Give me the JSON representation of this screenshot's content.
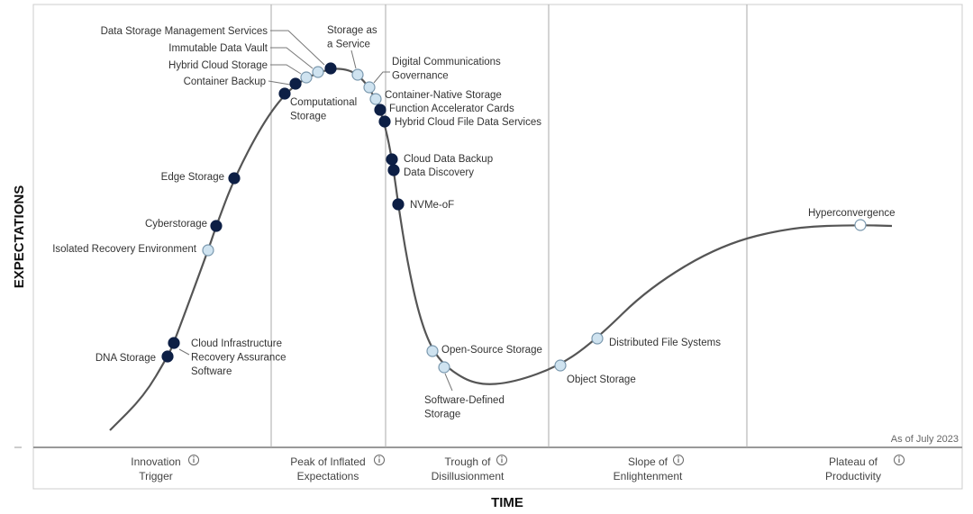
{
  "y_axis_label": "EXPECTATIONS",
  "x_axis_label": "TIME",
  "as_of": "As of July 2023",
  "colors": {
    "dark_point": "#0d1f45",
    "light_point": "#cfe3f0",
    "curve": "#555555",
    "divider": "#aaaaaa"
  },
  "phases": [
    {
      "lines": [
        "Innovation",
        "Trigger"
      ],
      "icon": "info-icon"
    },
    {
      "lines": [
        "Peak of Inflated",
        "Expectations"
      ],
      "icon": "info-icon"
    },
    {
      "lines": [
        "Trough of",
        "Disillusionment"
      ],
      "icon": "info-icon"
    },
    {
      "lines": [
        "Slope of",
        "Enlightenment"
      ],
      "icon": "info-icon"
    },
    {
      "lines": [
        "Plateau of",
        "Productivity"
      ],
      "icon": "info-icon"
    }
  ],
  "technologies": [
    {
      "name": "DNA Storage",
      "lines": [
        "DNA Storage"
      ],
      "style": "dark",
      "phase": "Innovation Trigger"
    },
    {
      "name": "Cloud Infrastructure Recovery Assurance Software",
      "lines": [
        "Cloud Infrastructure",
        "Recovery Assurance",
        "Software"
      ],
      "style": "dark",
      "phase": "Innovation Trigger"
    },
    {
      "name": "Isolated Recovery Environment",
      "lines": [
        "Isolated Recovery Environment"
      ],
      "style": "light",
      "phase": "Innovation Trigger"
    },
    {
      "name": "Cyberstorage",
      "lines": [
        "Cyberstorage"
      ],
      "style": "dark",
      "phase": "Innovation Trigger"
    },
    {
      "name": "Edge Storage",
      "lines": [
        "Edge Storage"
      ],
      "style": "dark",
      "phase": "Innovation Trigger"
    },
    {
      "name": "Computational Storage",
      "lines": [
        "Computational",
        "Storage"
      ],
      "style": "dark",
      "phase": "Peak of Inflated Expectations"
    },
    {
      "name": "Container Backup",
      "lines": [
        "Container Backup"
      ],
      "style": "dark",
      "phase": "Peak of Inflated Expectations"
    },
    {
      "name": "Hybrid Cloud Storage",
      "lines": [
        "Hybrid Cloud Storage"
      ],
      "style": "light",
      "phase": "Peak of Inflated Expectations"
    },
    {
      "name": "Immutable Data Vault",
      "lines": [
        "Immutable Data Vault"
      ],
      "style": "light",
      "phase": "Peak of Inflated Expectations"
    },
    {
      "name": "Data Storage Management Services",
      "lines": [
        "Data Storage Management Services"
      ],
      "style": "dark",
      "phase": "Peak of Inflated Expectations"
    },
    {
      "name": "Storage as a Service",
      "lines": [
        "Storage as",
        "a Service"
      ],
      "style": "light",
      "phase": "Peak of Inflated Expectations"
    },
    {
      "name": "Digital Communications Governance",
      "lines": [
        "Digital Communications",
        "Governance"
      ],
      "style": "light",
      "phase": "Peak of Inflated Expectations"
    },
    {
      "name": "Container-Native Storage",
      "lines": [
        "Container-Native Storage"
      ],
      "style": "light",
      "phase": "Peak of Inflated Expectations"
    },
    {
      "name": "Function Accelerator Cards",
      "lines": [
        "Function Accelerator Cards"
      ],
      "style": "dark",
      "phase": "Peak of Inflated Expectations"
    },
    {
      "name": "Hybrid Cloud File Data Services",
      "lines": [
        "Hybrid Cloud File Data Services"
      ],
      "style": "dark",
      "phase": "Peak of Inflated Expectations"
    },
    {
      "name": "Cloud Data Backup",
      "lines": [
        "Cloud Data Backup"
      ],
      "style": "dark",
      "phase": "Trough of Disillusionment"
    },
    {
      "name": "Data Discovery",
      "lines": [
        "Data Discovery"
      ],
      "style": "dark",
      "phase": "Trough of Disillusionment"
    },
    {
      "name": "NVMe-oF",
      "lines": [
        "NVMe-oF"
      ],
      "style": "dark",
      "phase": "Trough of Disillusionment"
    },
    {
      "name": "Open-Source Storage",
      "lines": [
        "Open-Source Storage"
      ],
      "style": "light",
      "phase": "Trough of Disillusionment"
    },
    {
      "name": "Software-Defined Storage",
      "lines": [
        "Software-Defined",
        "Storage"
      ],
      "style": "light",
      "phase": "Trough of Disillusionment"
    },
    {
      "name": "Object Storage",
      "lines": [
        "Object Storage"
      ],
      "style": "light",
      "phase": "Slope of Enlightenment"
    },
    {
      "name": "Distributed File Systems",
      "lines": [
        "Distributed File Systems"
      ],
      "style": "light",
      "phase": "Slope of Enlightenment"
    },
    {
      "name": "Hyperconvergence",
      "lines": [
        "Hyperconvergence"
      ],
      "style": "light",
      "phase": "Plateau of Productivity"
    }
  ]
}
